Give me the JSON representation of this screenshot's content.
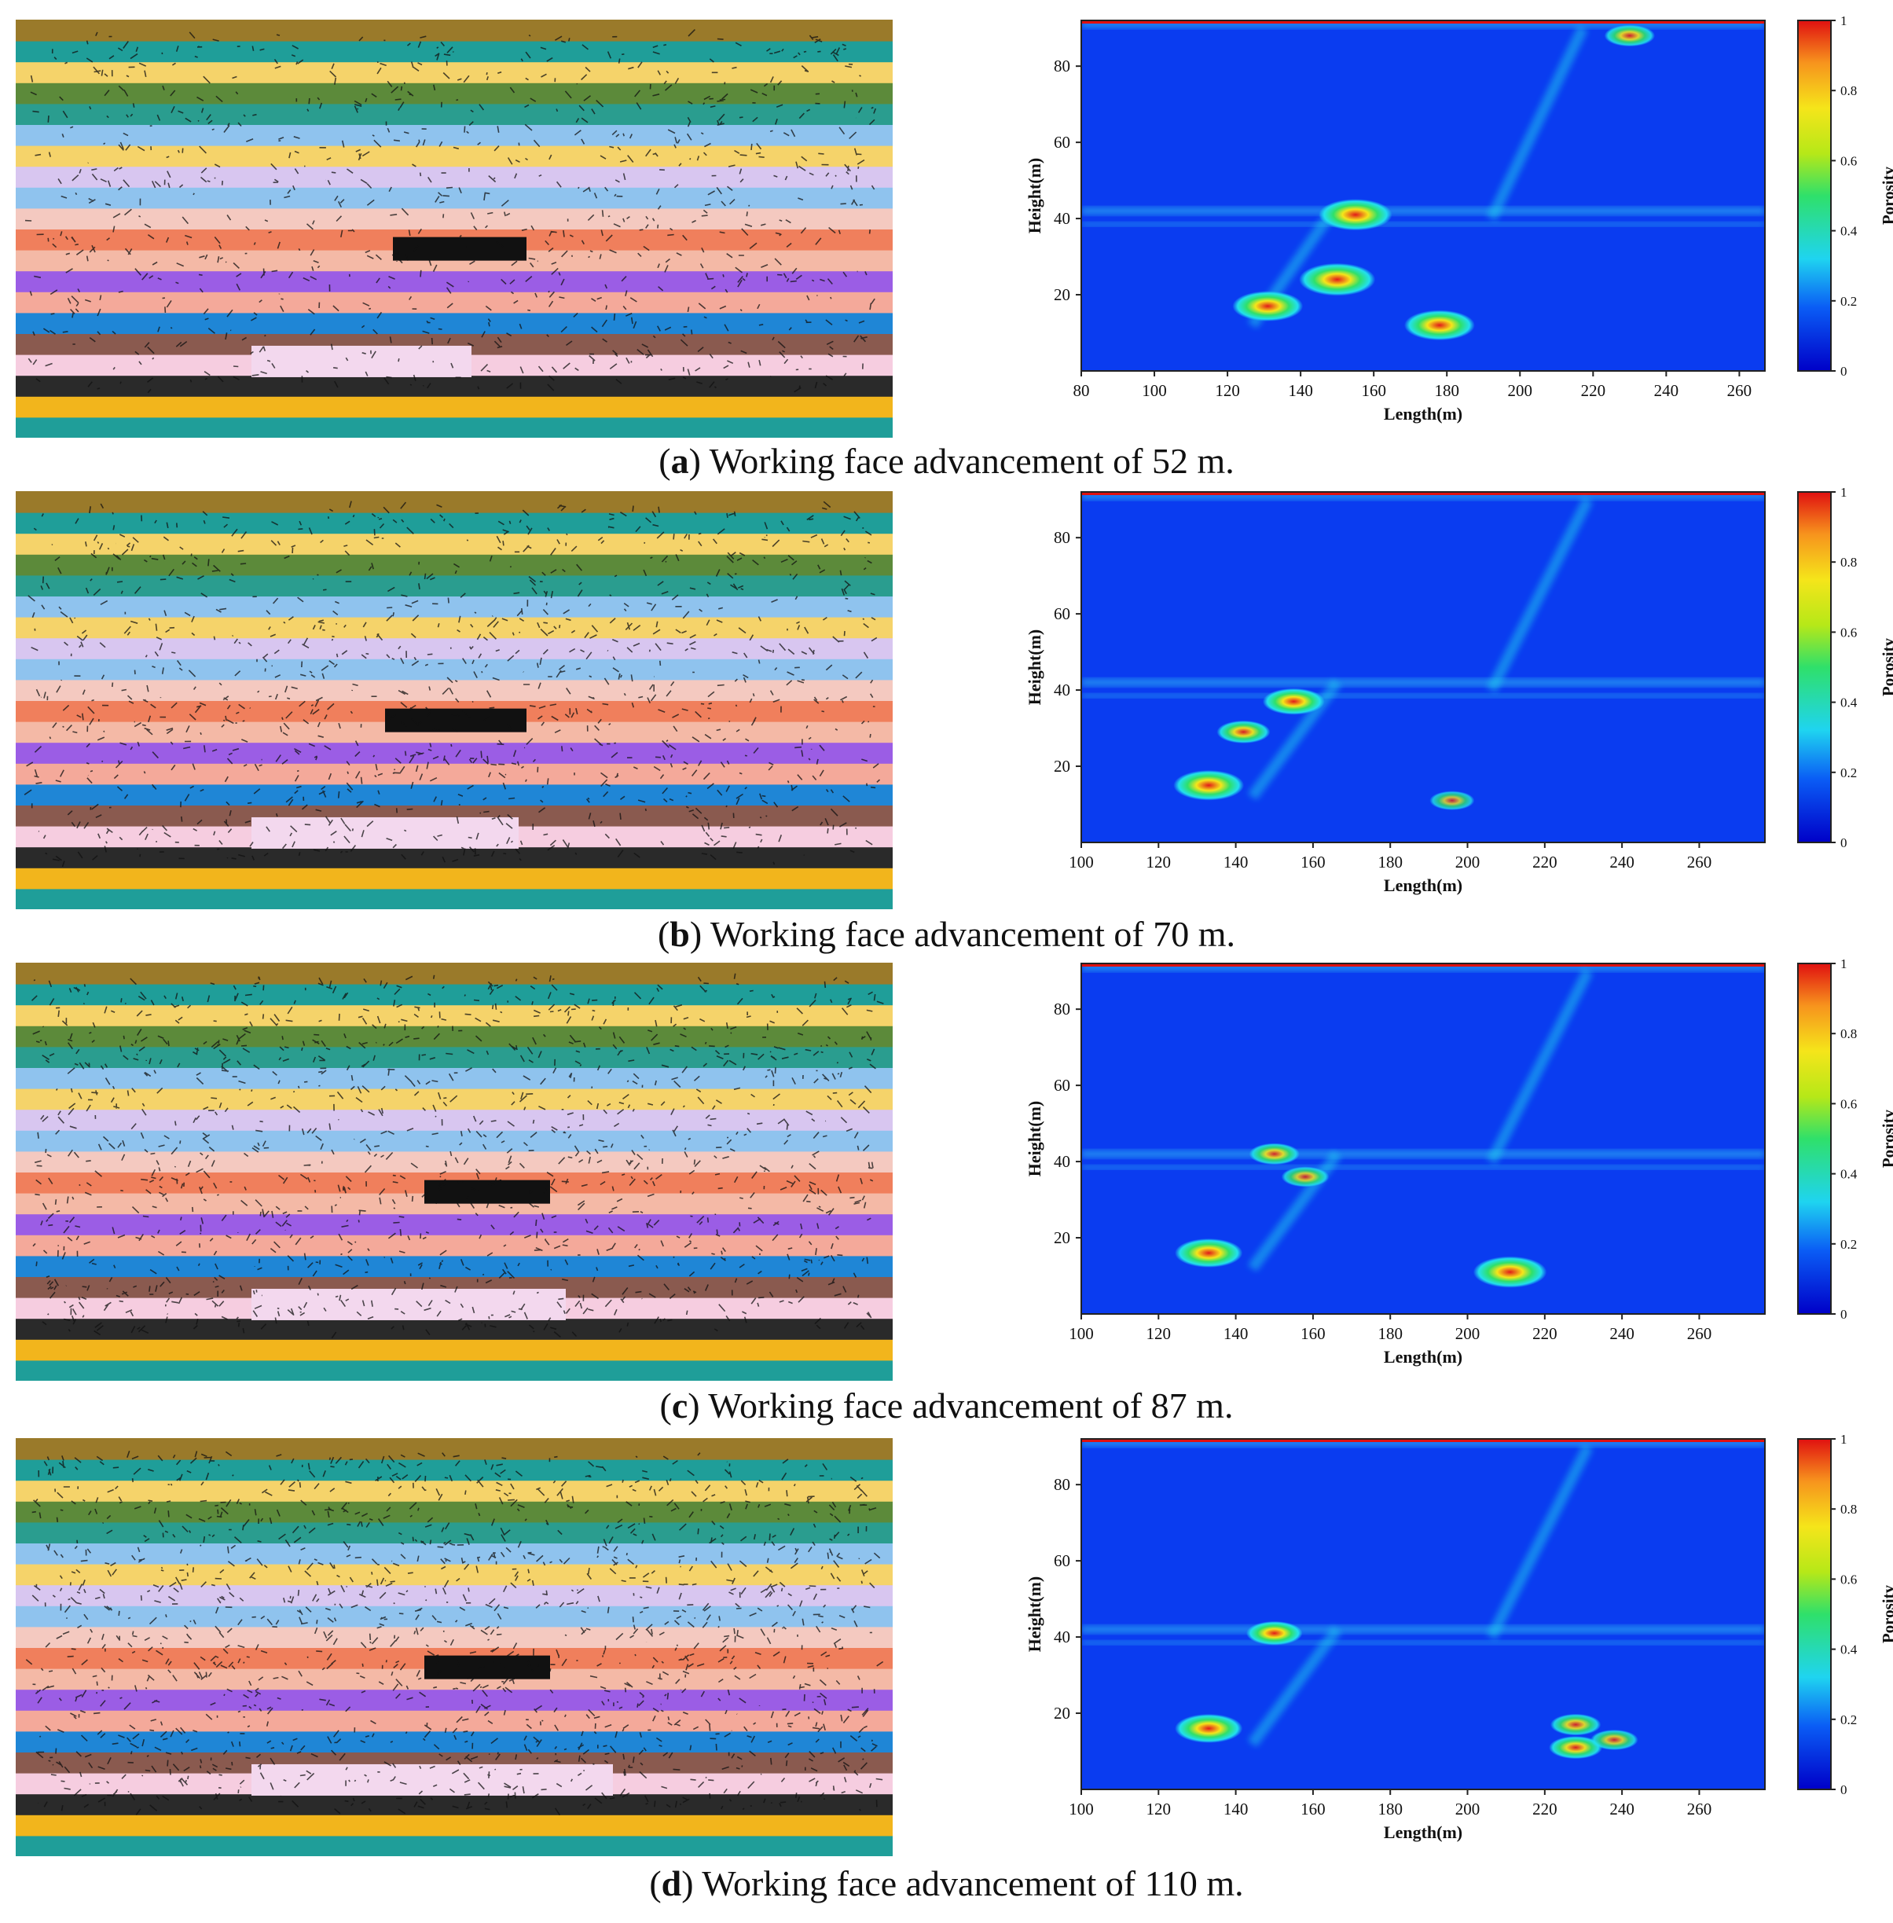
{
  "panels": [
    {
      "letter": "a",
      "caption": "Working face advancement of 52 m.",
      "xlim": [
        80,
        267
      ],
      "xticks": [
        80,
        100,
        120,
        140,
        160,
        180,
        200,
        220,
        240,
        260
      ]
    },
    {
      "letter": "b",
      "caption": "Working face advancement of 70 m.",
      "xlim": [
        100,
        277
      ],
      "xticks": [
        100,
        120,
        140,
        160,
        180,
        200,
        220,
        240,
        260
      ]
    },
    {
      "letter": "c",
      "caption": "Working face advancement of 87 m.",
      "xlim": [
        100,
        277
      ],
      "xticks": [
        100,
        120,
        140,
        160,
        180,
        200,
        220,
        240,
        260
      ]
    },
    {
      "letter": "d",
      "caption": "Working face advancement of 110 m.",
      "xlim": [
        100,
        277
      ],
      "xticks": [
        100,
        120,
        140,
        160,
        180,
        200,
        220,
        240,
        260
      ]
    }
  ],
  "axes": {
    "xlabel": "Length(m)",
    "ylabel": "Height(m)",
    "ylim": [
      0,
      92
    ],
    "yticks": [
      20,
      40,
      60,
      80
    ],
    "colorbar_label": "Porosity",
    "colorbar_ticks": [
      "0",
      "0.2",
      "0.4",
      "0.6",
      "0.8",
      "1"
    ]
  },
  "colors": {
    "low": "#0a3cf0",
    "mid": "#22e0ee",
    "high": "#e11a1a"
  },
  "chart_data": [
    {
      "type": "heatmap",
      "panel": "a",
      "xlabel": "Length(m)",
      "ylabel": "Height(m)",
      "colorbar": "Porosity",
      "xlim": [
        80,
        267
      ],
      "ylim": [
        0,
        92
      ],
      "zlim": [
        0,
        1
      ],
      "peaks": [
        {
          "x": 150,
          "y": 24,
          "porosity": 0.95
        },
        {
          "x": 155,
          "y": 41,
          "porosity": 0.9
        },
        {
          "x": 131,
          "y": 17,
          "porosity": 0.85
        },
        {
          "x": 178,
          "y": 12,
          "porosity": 0.85
        },
        {
          "x": 230,
          "y": 88,
          "porosity": 0.5
        }
      ]
    },
    {
      "type": "heatmap",
      "panel": "b",
      "xlabel": "Length(m)",
      "ylabel": "Height(m)",
      "colorbar": "Porosity",
      "xlim": [
        100,
        277
      ],
      "ylim": [
        0,
        92
      ],
      "zlim": [
        0,
        1
      ],
      "peaks": [
        {
          "x": 133,
          "y": 15,
          "porosity": 0.85
        },
        {
          "x": 155,
          "y": 37,
          "porosity": 0.7
        },
        {
          "x": 142,
          "y": 29,
          "porosity": 0.55
        },
        {
          "x": 196,
          "y": 11,
          "porosity": 0.4
        }
      ]
    },
    {
      "type": "heatmap",
      "panel": "c",
      "xlabel": "Length(m)",
      "ylabel": "Height(m)",
      "colorbar": "Porosity",
      "xlim": [
        100,
        277
      ],
      "ylim": [
        0,
        92
      ],
      "zlim": [
        0,
        1
      ],
      "peaks": [
        {
          "x": 211,
          "y": 11,
          "porosity": 0.9
        },
        {
          "x": 133,
          "y": 16,
          "porosity": 0.8
        },
        {
          "x": 150,
          "y": 42,
          "porosity": 0.5
        },
        {
          "x": 158,
          "y": 36,
          "porosity": 0.45
        }
      ]
    },
    {
      "type": "heatmap",
      "panel": "d",
      "xlabel": "Length(m)",
      "ylabel": "Height(m)",
      "colorbar": "Porosity",
      "xlim": [
        100,
        277
      ],
      "ylim": [
        0,
        92
      ],
      "zlim": [
        0,
        1
      ],
      "peaks": [
        {
          "x": 133,
          "y": 16,
          "porosity": 0.8
        },
        {
          "x": 150,
          "y": 41,
          "porosity": 0.6
        },
        {
          "x": 228,
          "y": 11,
          "porosity": 0.55
        },
        {
          "x": 228,
          "y": 17,
          "porosity": 0.5
        },
        {
          "x": 238,
          "y": 13,
          "porosity": 0.45
        }
      ]
    }
  ]
}
